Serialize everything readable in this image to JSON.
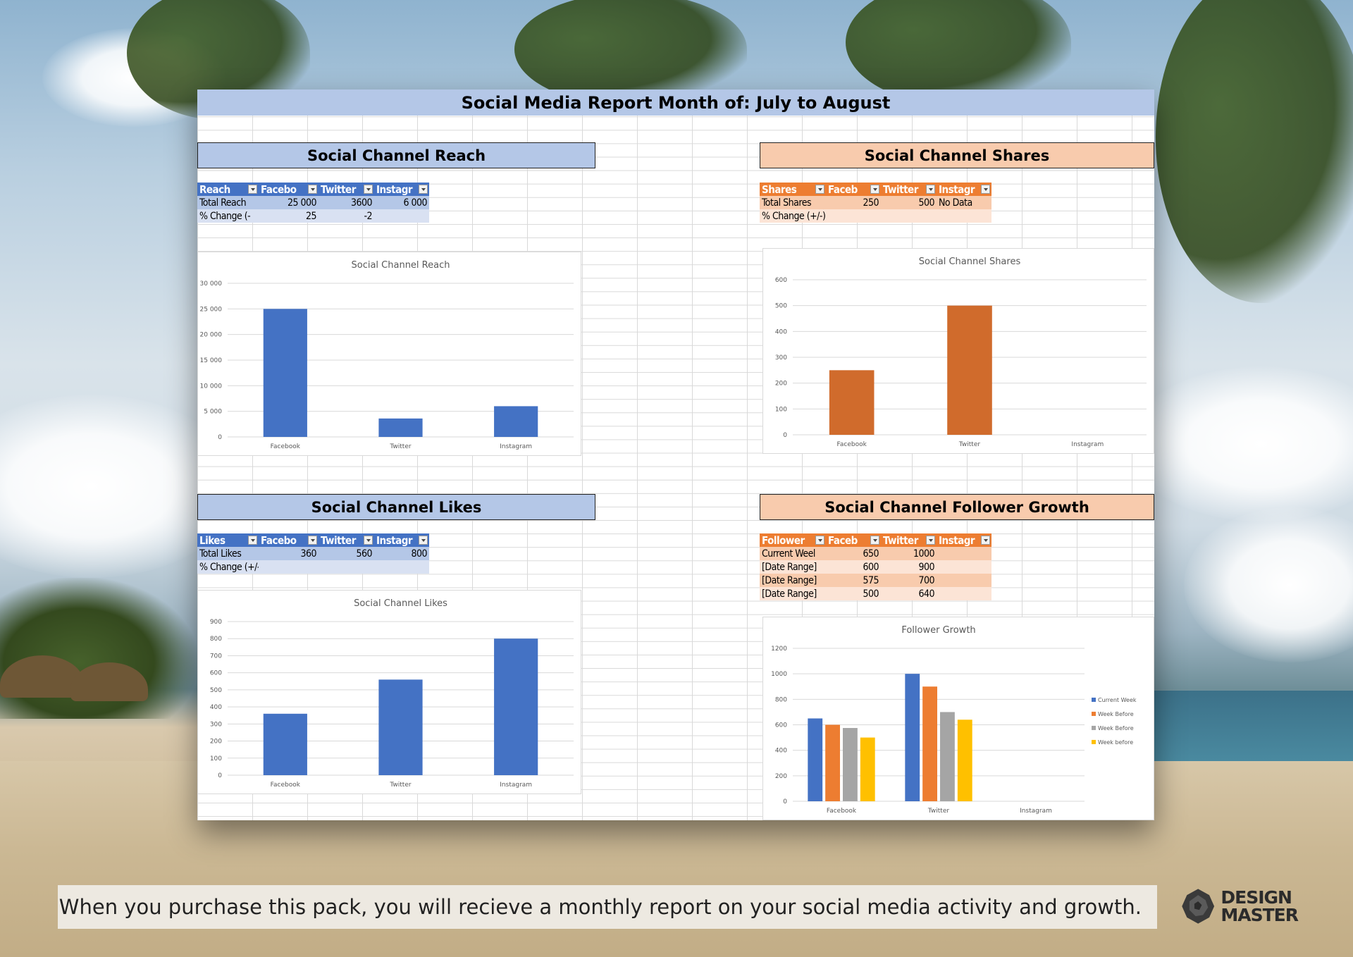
{
  "report_title": "Social Media Report Month of: July to August",
  "sections": {
    "reach": {
      "heading": "Social Channel Reach",
      "headers": [
        "Reach",
        "Facebo",
        "Twitter",
        "Instagr"
      ],
      "rows": [
        [
          "Total Reach",
          "25 000",
          "3600",
          "6 000"
        ],
        [
          "% Change (-",
          "25",
          "-2",
          ""
        ]
      ]
    },
    "shares": {
      "heading": "Social Channel Shares",
      "headers": [
        "Shares",
        "Faceb",
        "Twitter",
        "Instagr"
      ],
      "rows": [
        [
          "Total Shares",
          "250",
          "500",
          "No Data"
        ],
        [
          "% Change (+/-)",
          "",
          "",
          ""
        ]
      ]
    },
    "likes": {
      "heading": "Social Channel Likes",
      "headers": [
        "Likes",
        "Facebo",
        "Twitter",
        "Instagr"
      ],
      "rows": [
        [
          "Total Likes",
          "360",
          "560",
          "800"
        ],
        [
          "% Change (+/-)",
          "",
          "",
          ""
        ]
      ]
    },
    "followers": {
      "heading": "Social Channel Follower Growth",
      "headers": [
        "Follower",
        "Faceb",
        "Twitter",
        "Instagr"
      ],
      "rows": [
        [
          "Current Weel",
          "650",
          "1000",
          ""
        ],
        [
          "[Date Range]",
          "600",
          "900",
          ""
        ],
        [
          "[Date Range]",
          "575",
          "700",
          ""
        ],
        [
          "[Date Range]",
          "500",
          "640",
          ""
        ]
      ]
    }
  },
  "chart_data": [
    {
      "id": "reach",
      "type": "bar",
      "title": "Social Channel Reach",
      "categories": [
        "Facebook",
        "Twitter",
        "Instagram"
      ],
      "values": [
        25000,
        3600,
        6000
      ],
      "ylim": [
        0,
        30000
      ],
      "ticks": [
        0,
        5000,
        10000,
        15000,
        20000,
        25000,
        30000
      ],
      "tick_labels": [
        "0",
        "5 000",
        "10 000",
        "15 000",
        "20 000",
        "25 000",
        "30 000"
      ],
      "color": "#4472c4",
      "grid": true
    },
    {
      "id": "shares",
      "type": "bar",
      "title": "Social Channel Shares",
      "categories": [
        "Facebook",
        "Twitter",
        "Instagram"
      ],
      "values": [
        250,
        500,
        0
      ],
      "ylim": [
        0,
        600
      ],
      "ticks": [
        0,
        100,
        200,
        300,
        400,
        500,
        600
      ],
      "tick_labels": [
        "0",
        "100",
        "200",
        "300",
        "400",
        "500",
        "600"
      ],
      "color": "#d06b2c",
      "grid": true
    },
    {
      "id": "likes",
      "type": "bar",
      "title": "Social Channel Likes",
      "categories": [
        "Facebook",
        "Twitter",
        "Instagram"
      ],
      "values": [
        360,
        560,
        800
      ],
      "ylim": [
        0,
        900
      ],
      "ticks": [
        0,
        100,
        200,
        300,
        400,
        500,
        600,
        700,
        800,
        900
      ],
      "tick_labels": [
        "0",
        "100",
        "200",
        "300",
        "400",
        "500",
        "600",
        "700",
        "800",
        "900"
      ],
      "color": "#4472c4",
      "grid": true
    },
    {
      "id": "followers",
      "type": "bar",
      "title": "Follower Growth",
      "categories": [
        "Facebook",
        "Twitter",
        "Instagram"
      ],
      "series": [
        {
          "name": "Current Week",
          "values": [
            650,
            1000,
            0
          ],
          "color": "#4472c4"
        },
        {
          "name": "Week Before",
          "values": [
            600,
            900,
            0
          ],
          "color": "#ed7d31"
        },
        {
          "name": "Week Before",
          "values": [
            575,
            700,
            0
          ],
          "color": "#a5a5a5"
        },
        {
          "name": "Week before",
          "values": [
            500,
            640,
            0
          ],
          "color": "#ffc000"
        }
      ],
      "ylim": [
        0,
        1200
      ],
      "ticks": [
        0,
        200,
        400,
        600,
        800,
        1000,
        1200
      ],
      "tick_labels": [
        "0",
        "200",
        "400",
        "600",
        "800",
        "1000",
        "1200"
      ],
      "legend": "right",
      "grid": true
    }
  ],
  "footer_text": "When you purchase this pack, you will recieve a monthly report on your social media activity and growth.",
  "logo": {
    "line1": "DESIGN",
    "line2": "MASTER"
  }
}
